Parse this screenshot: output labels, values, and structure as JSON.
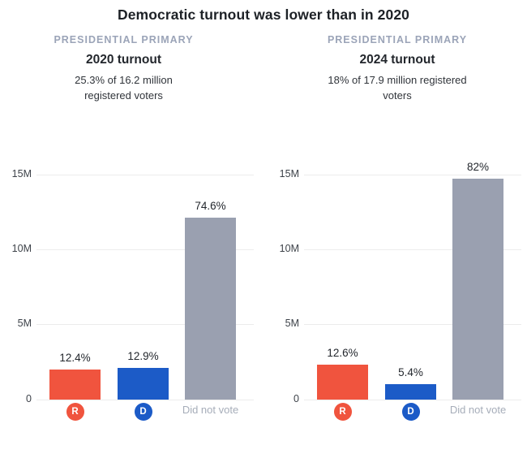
{
  "page": {
    "title": "Democratic turnout was lower than in 2020"
  },
  "colors": {
    "republican": "#f0543e",
    "democrat": "#1c5bc7",
    "did_not_vote_bar": "#9aa0b0",
    "kicker_text": "#9ba4b8",
    "category_text": "#a6adb9",
    "grid_line": "#ececec",
    "title_text": "#1d2126"
  },
  "chart_data": [
    {
      "type": "bar",
      "kicker": "PRESIDENTIAL PRIMARY",
      "title": "2020 turnout",
      "subtitle": "25.3% of 16.2 million registered voters",
      "categories": [
        "R",
        "D",
        "Did not vote"
      ],
      "category_display": [
        "badge",
        "badge",
        "text"
      ],
      "values_millions": [
        2.0,
        2.1,
        12.1
      ],
      "bar_labels": [
        "12.4%",
        "12.9%",
        "74.6%"
      ],
      "bar_colors": [
        "#f0543e",
        "#1c5bc7",
        "#9aa0b0"
      ],
      "y_ticks": [
        {
          "value": 0,
          "label": "0"
        },
        {
          "value": 5,
          "label": "5M"
        },
        {
          "value": 10,
          "label": "10M"
        },
        {
          "value": 15,
          "label": "15M"
        }
      ],
      "ylim": [
        0,
        16.8
      ],
      "grid": true,
      "legend": "none"
    },
    {
      "type": "bar",
      "kicker": "PRESIDENTIAL PRIMARY",
      "title": "2024 turnout",
      "subtitle": "18% of 17.9 million registered voters",
      "categories": [
        "R",
        "D",
        "Did not vote"
      ],
      "category_display": [
        "badge",
        "badge",
        "text"
      ],
      "values_millions": [
        2.3,
        1.0,
        14.7
      ],
      "bar_labels": [
        "12.6%",
        "5.4%",
        "82%"
      ],
      "bar_colors": [
        "#f0543e",
        "#1c5bc7",
        "#9aa0b0"
      ],
      "y_ticks": [
        {
          "value": 0,
          "label": "0"
        },
        {
          "value": 5,
          "label": "5M"
        },
        {
          "value": 10,
          "label": "10M"
        },
        {
          "value": 15,
          "label": "15M"
        }
      ],
      "ylim": [
        0,
        16.8
      ],
      "grid": true,
      "legend": "none"
    }
  ]
}
